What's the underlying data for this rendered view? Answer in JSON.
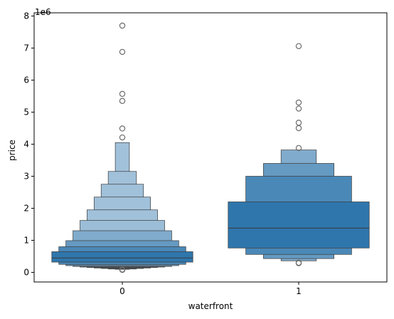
{
  "chart_data": {
    "type": "boxen",
    "title": "",
    "xlabel": "waterfront",
    "ylabel": "price",
    "y_offset_label": "1e6",
    "y_scale": 1000000,
    "ylim": [
      -300000,
      8100000
    ],
    "y_ticks": [
      0,
      1000000,
      2000000,
      3000000,
      4000000,
      5000000,
      6000000,
      7000000,
      8000000
    ],
    "y_tick_labels": [
      "0",
      "1",
      "2",
      "3",
      "4",
      "5",
      "6",
      "7",
      "8"
    ],
    "categories": [
      "0",
      "1"
    ],
    "grid": false,
    "legend": "none",
    "colors": {
      "box": "#2f76ac",
      "edge": "#3a3a3a",
      "outlier_edge": "#6b6b6b",
      "median": "#3a3a3a"
    },
    "series": [
      {
        "category": "0",
        "median": 450000,
        "boxes": [
          {
            "low": 320000,
            "high": 645000
          },
          {
            "low": 250000,
            "high": 800000
          },
          {
            "low": 210000,
            "high": 990000
          },
          {
            "low": 185000,
            "high": 1300000
          },
          {
            "low": 165000,
            "high": 1620000
          },
          {
            "low": 150000,
            "high": 1950000
          },
          {
            "low": 135000,
            "high": 2350000
          },
          {
            "low": 120000,
            "high": 2750000
          },
          {
            "low": 105000,
            "high": 3150000
          },
          {
            "low": 95000,
            "high": 4050000
          }
        ],
        "outliers": [
          7700000,
          6880000,
          5570000,
          5350000,
          4490000,
          4210000,
          90000,
          82000,
          78000
        ]
      },
      {
        "category": "1",
        "median": 1380000,
        "boxes": [
          {
            "low": 760000,
            "high": 2200000
          },
          {
            "low": 560000,
            "high": 3000000
          },
          {
            "low": 430000,
            "high": 3400000
          },
          {
            "low": 360000,
            "high": 3820000
          }
        ],
        "outliers": [
          7060000,
          5300000,
          5110000,
          4670000,
          4500000,
          3880000,
          300000,
          285000
        ]
      }
    ]
  }
}
